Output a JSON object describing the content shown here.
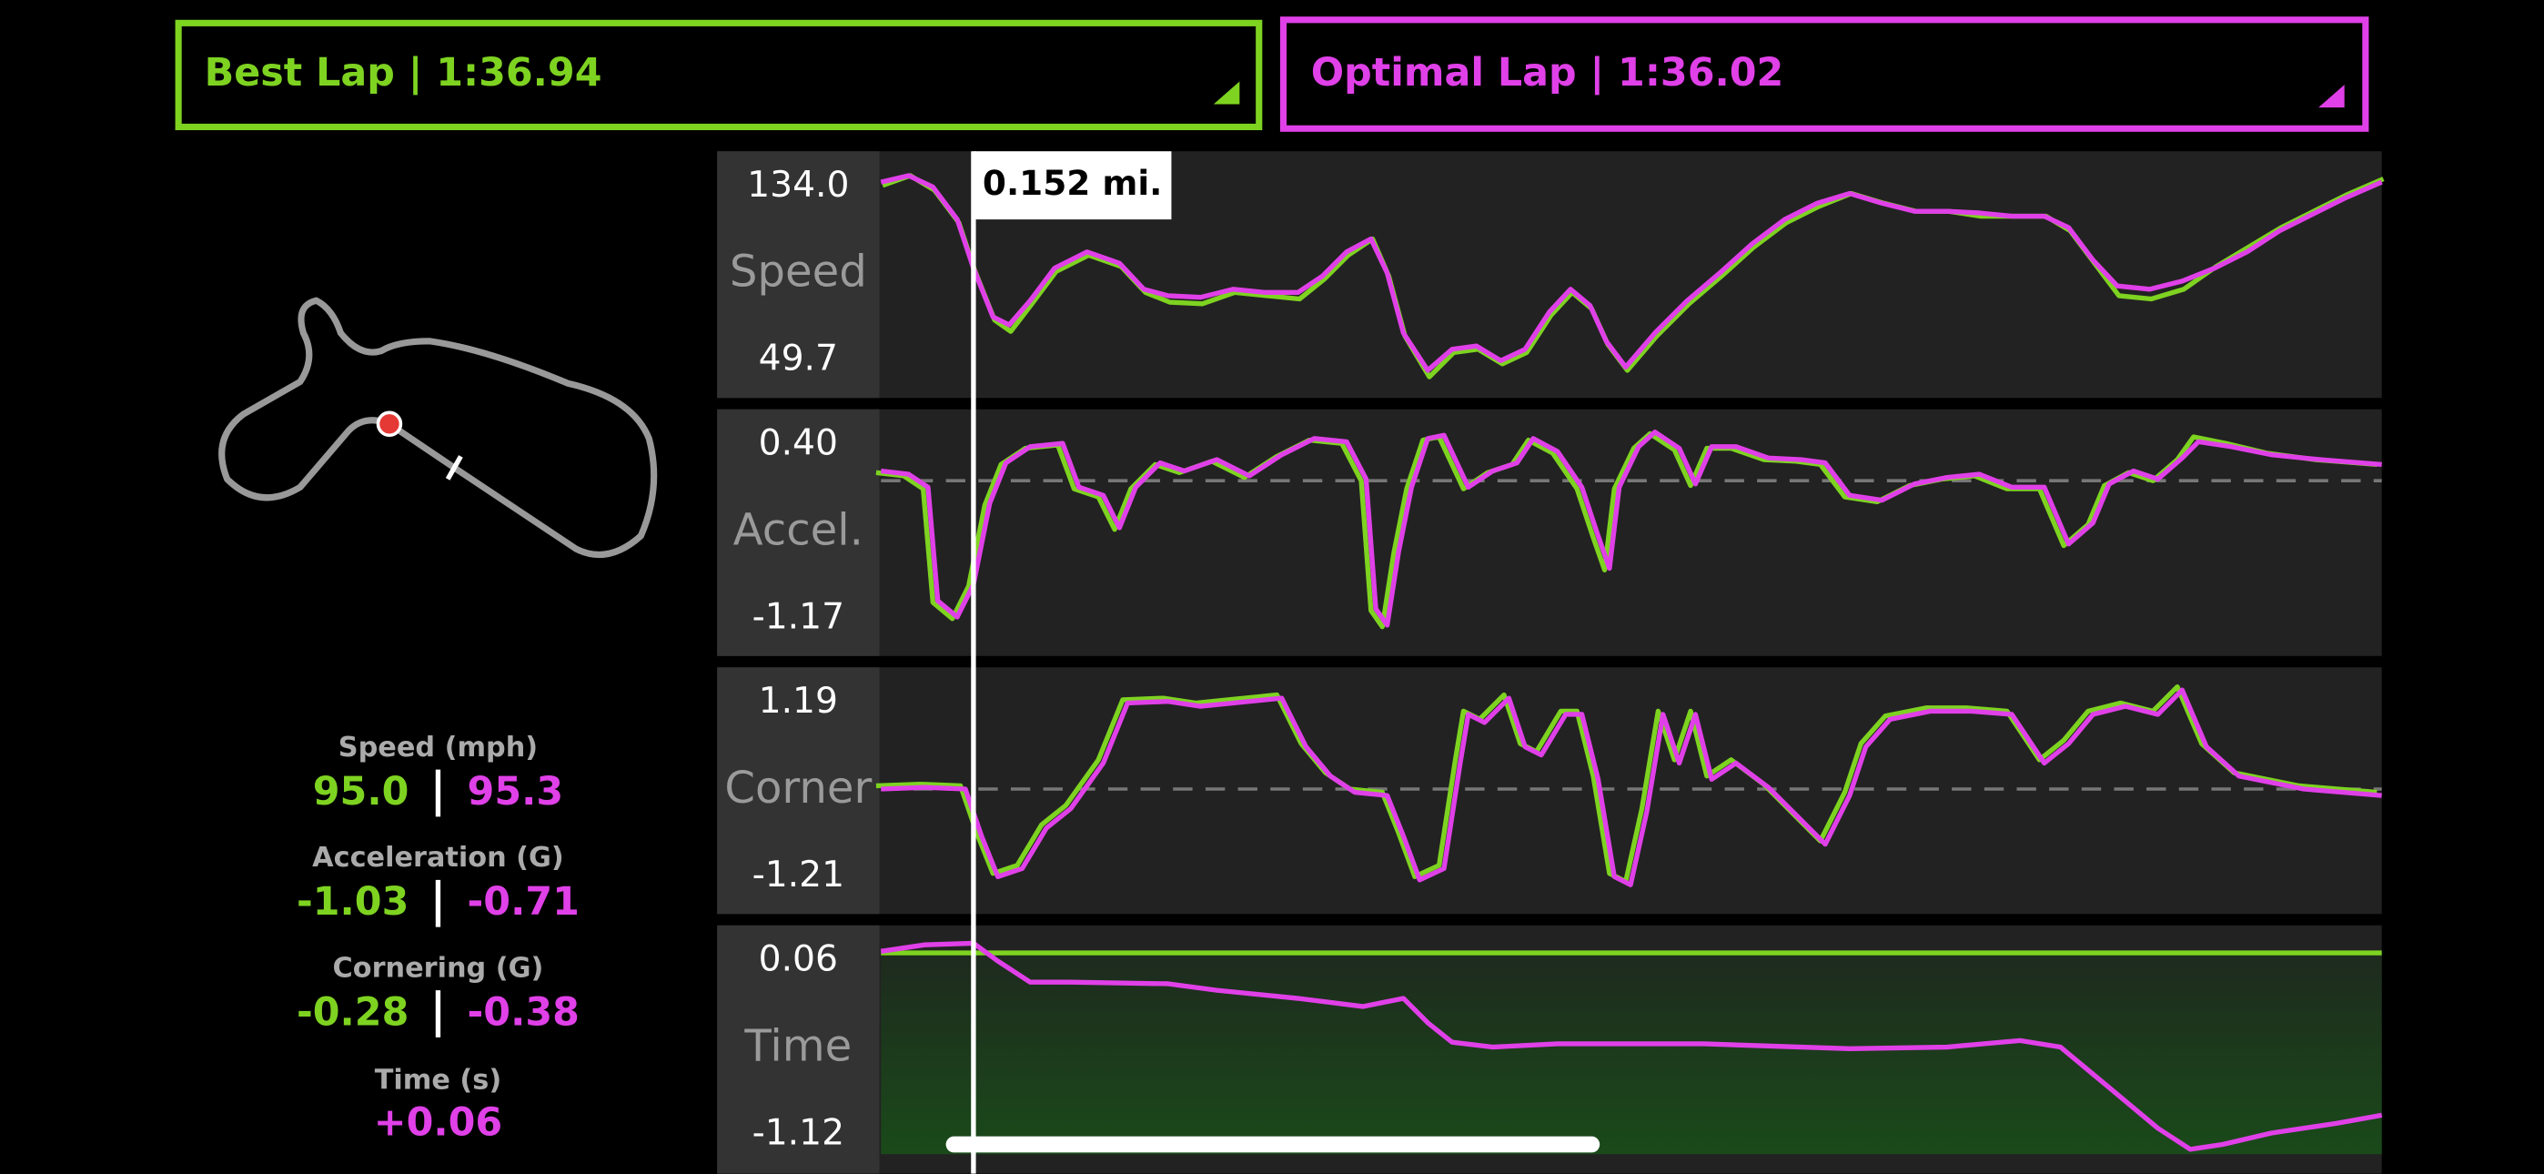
{
  "header": {
    "best_lap": "Best Lap | 1:36.94",
    "optimal_lap": "Optimal Lap | 1:36.02"
  },
  "cursor_label": "0.152 mi.",
  "panels": [
    {
      "name": "Speed",
      "max": "134.0",
      "min": "49.7"
    },
    {
      "name": "Accel.",
      "max": "0.40",
      "min": "-1.17"
    },
    {
      "name": "Corner",
      "max": "1.19",
      "min": "-1.21"
    },
    {
      "name": "Time",
      "max": "0.06",
      "min": "-1.12"
    }
  ],
  "stats": [
    {
      "label": "Speed (mph)",
      "best": "95.0",
      "optimal": "95.3"
    },
    {
      "label": "Acceleration (G)",
      "best": "-1.03",
      "optimal": "-0.71"
    },
    {
      "label": "Cornering (G)",
      "best": "-0.28",
      "optimal": "-0.38"
    }
  ],
  "time_stat": {
    "label": "Time (s)",
    "value": "+0.06"
  }
}
